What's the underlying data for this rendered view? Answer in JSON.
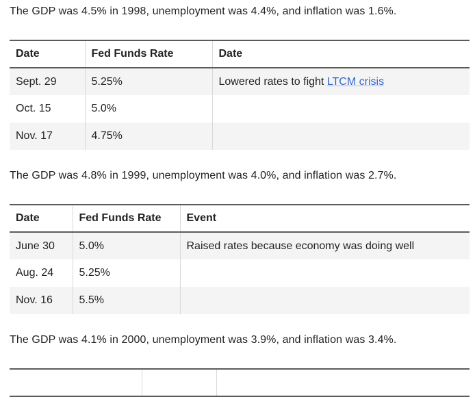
{
  "sections": [
    {
      "paragraph": "The GDP was 4.5% in 1998, unemployment was 4.4%, and inflation was 1.6%.",
      "table": {
        "headers": [
          "Date",
          "Fed Funds Rate",
          "Date"
        ],
        "rows": [
          {
            "date": "Sept. 29",
            "rate": "5.25%",
            "event_text": "Lowered rates to fight ",
            "event_link": "LTCM crisis"
          },
          {
            "date": "Oct. 15",
            "rate": "5.0%",
            "event_text": ""
          },
          {
            "date": "Nov. 17",
            "rate": "4.75%",
            "event_text": ""
          }
        ]
      }
    },
    {
      "paragraph": "The GDP was 4.8% in 1999, unemployment was 4.0%, and inflation was 2.7%.",
      "table": {
        "headers": [
          "Date",
          "Fed Funds Rate",
          "Event"
        ],
        "rows": [
          {
            "date": "June 30",
            "rate": "5.0%",
            "event_text": "Raised rates because economy was doing well"
          },
          {
            "date": "Aug. 24",
            "rate": "5.25%",
            "event_text": ""
          },
          {
            "date": "Nov. 16",
            "rate": "5.5%",
            "event_text": ""
          }
        ]
      }
    },
    {
      "paragraph": "The GDP was 4.1% in 2000, unemployment was 3.9%, and inflation was 3.4%.",
      "table": {
        "headers": [
          "",
          "",
          ""
        ],
        "rows": []
      }
    }
  ],
  "colors": {
    "text": "#222222",
    "link": "#3366cc",
    "row_stripe": "#f4f4f5",
    "border_dark": "#5b5b5b",
    "border_light": "#d8d8d8"
  }
}
